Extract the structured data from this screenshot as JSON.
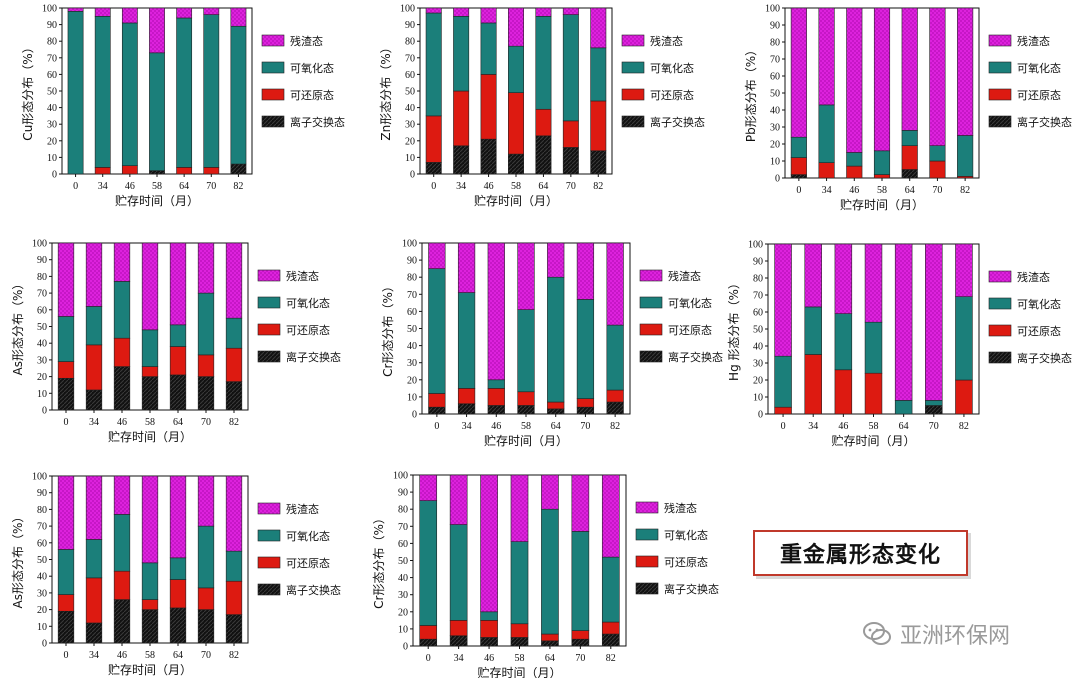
{
  "page": {
    "title": "重金属形态变化",
    "watermark": "亚洲环保网"
  },
  "chart_data": [
    {
      "type": "bar",
      "stacked": true,
      "ylabel": "Cu形态分布（%）",
      "xlabel": "贮存时间（月）",
      "categories": [
        "0",
        "34",
        "46",
        "58",
        "64",
        "70",
        "82"
      ],
      "ylim": [
        0,
        100
      ],
      "legend": "right",
      "series": [
        {
          "name": "离子交换态",
          "color": "#111111",
          "values": [
            0,
            0,
            0,
            2,
            0,
            0,
            6
          ]
        },
        {
          "name": "可还原态",
          "color": "#dd1a11",
          "values": [
            0,
            4,
            5,
            0,
            4,
            4,
            0
          ]
        },
        {
          "name": "可氧化态",
          "color": "#1b7f7a",
          "values": [
            98,
            91,
            86,
            71,
            90,
            92,
            83
          ]
        },
        {
          "name": "残渣态",
          "color": "#dd22dd",
          "values": [
            2,
            5,
            9,
            27,
            6,
            4,
            11
          ]
        }
      ]
    },
    {
      "type": "bar",
      "stacked": true,
      "ylabel": "Zn形态分布（%）",
      "xlabel": "贮存时间（月）",
      "categories": [
        "0",
        "34",
        "46",
        "58",
        "64",
        "70",
        "82"
      ],
      "ylim": [
        0,
        100
      ],
      "legend": "right",
      "series": [
        {
          "name": "离子交换态",
          "color": "#111111",
          "values": [
            7,
            17,
            21,
            12,
            23,
            16,
            14
          ]
        },
        {
          "name": "可还原态",
          "color": "#dd1a11",
          "values": [
            28,
            33,
            39,
            37,
            16,
            16,
            30
          ]
        },
        {
          "name": "可氧化态",
          "color": "#1b7f7a",
          "values": [
            62,
            45,
            31,
            28,
            56,
            64,
            32
          ]
        },
        {
          "name": "残渣态",
          "color": "#dd22dd",
          "values": [
            3,
            5,
            9,
            23,
            5,
            4,
            24
          ]
        }
      ]
    },
    {
      "type": "bar",
      "stacked": true,
      "ylabel": "Pb形态分布（%）",
      "xlabel": "贮存时间（月）",
      "categories": [
        "0",
        "34",
        "46",
        "58",
        "64",
        "70",
        "82"
      ],
      "ylim": [
        0,
        100
      ],
      "legend": "right",
      "series": [
        {
          "name": "离子交换态",
          "color": "#111111",
          "values": [
            2,
            0,
            0,
            0,
            5,
            0,
            0
          ]
        },
        {
          "name": "可还原态",
          "color": "#dd1a11",
          "values": [
            10,
            9,
            7,
            2,
            14,
            10,
            1
          ]
        },
        {
          "name": "可氧化态",
          "color": "#1b7f7a",
          "values": [
            12,
            34,
            8,
            14,
            9,
            9,
            24
          ]
        },
        {
          "name": "残渣态",
          "color": "#dd22dd",
          "values": [
            76,
            57,
            85,
            84,
            72,
            81,
            75
          ]
        }
      ]
    },
    {
      "type": "bar",
      "stacked": true,
      "ylabel": "As形态分布（%）",
      "xlabel": "贮存时间（月）",
      "categories": [
        "0",
        "34",
        "46",
        "58",
        "64",
        "70",
        "82"
      ],
      "ylim": [
        0,
        100
      ],
      "legend": "right",
      "series": [
        {
          "name": "离子交换态",
          "color": "#111111",
          "values": [
            19,
            12,
            26,
            20,
            21,
            20,
            17
          ]
        },
        {
          "name": "可还原态",
          "color": "#dd1a11",
          "values": [
            10,
            27,
            17,
            6,
            17,
            13,
            20
          ]
        },
        {
          "name": "可氧化态",
          "color": "#1b7f7a",
          "values": [
            27,
            23,
            34,
            22,
            13,
            37,
            18
          ]
        },
        {
          "name": "残渣态",
          "color": "#dd22dd",
          "values": [
            44,
            38,
            23,
            52,
            49,
            30,
            45
          ]
        }
      ]
    },
    {
      "type": "bar",
      "stacked": true,
      "ylabel": "Cr形态分布（%）",
      "xlabel": "贮存时间（月）",
      "categories": [
        "0",
        "34",
        "46",
        "58",
        "64",
        "70",
        "82"
      ],
      "ylim": [
        0,
        100
      ],
      "legend": "right",
      "series": [
        {
          "name": "离子交换态",
          "color": "#111111",
          "values": [
            4,
            6,
            5,
            5,
            3,
            4,
            7
          ]
        },
        {
          "name": "可还原态",
          "color": "#dd1a11",
          "values": [
            8,
            9,
            10,
            8,
            4,
            5,
            7
          ]
        },
        {
          "name": "可氧化态",
          "color": "#1b7f7a",
          "values": [
            73,
            56,
            5,
            48,
            73,
            58,
            38
          ]
        },
        {
          "name": "残渣态",
          "color": "#dd22dd",
          "values": [
            15,
            29,
            80,
            39,
            20,
            33,
            48
          ]
        }
      ]
    },
    {
      "type": "bar",
      "stacked": true,
      "ylabel": "Hg 形态分布（%）",
      "xlabel": "贮存时间（月）",
      "categories": [
        "0",
        "34",
        "46",
        "58",
        "64",
        "70",
        "82"
      ],
      "ylim": [
        0,
        100
      ],
      "legend": "right",
      "series": [
        {
          "name": "离子交换态",
          "color": "#111111",
          "values": [
            0,
            0,
            0,
            0,
            0,
            5,
            0
          ]
        },
        {
          "name": "可还原态",
          "color": "#dd1a11",
          "values": [
            4,
            35,
            26,
            24,
            0,
            0,
            20
          ]
        },
        {
          "name": "可氧化态",
          "color": "#1b7f7a",
          "values": [
            30,
            28,
            33,
            30,
            8,
            3,
            49
          ]
        },
        {
          "name": "残渣态",
          "color": "#dd22dd",
          "values": [
            66,
            37,
            41,
            46,
            92,
            92,
            31
          ]
        }
      ]
    },
    {
      "type": "bar",
      "stacked": true,
      "ylabel": "As形态分布（%）",
      "xlabel": "贮存时间（月）",
      "categories": [
        "0",
        "34",
        "46",
        "58",
        "64",
        "70",
        "82"
      ],
      "ylim": [
        0,
        100
      ],
      "legend": "right",
      "series": [
        {
          "name": "离子交换态",
          "color": "#111111",
          "values": [
            19,
            12,
            26,
            20,
            21,
            20,
            17
          ]
        },
        {
          "name": "可还原态",
          "color": "#dd1a11",
          "values": [
            10,
            27,
            17,
            6,
            17,
            13,
            20
          ]
        },
        {
          "name": "可氧化态",
          "color": "#1b7f7a",
          "values": [
            27,
            23,
            34,
            22,
            13,
            37,
            18
          ]
        },
        {
          "name": "残渣态",
          "color": "#dd22dd",
          "values": [
            44,
            38,
            23,
            52,
            49,
            30,
            45
          ]
        }
      ]
    },
    {
      "type": "bar",
      "stacked": true,
      "ylabel": "Cr形态分布（%）",
      "xlabel": "贮存时间（月）",
      "categories": [
        "0",
        "34",
        "46",
        "58",
        "64",
        "70",
        "82"
      ],
      "ylim": [
        0,
        100
      ],
      "legend": "right",
      "series": [
        {
          "name": "离子交换态",
          "color": "#111111",
          "values": [
            4,
            6,
            5,
            5,
            3,
            4,
            7
          ]
        },
        {
          "name": "可还原态",
          "color": "#dd1a11",
          "values": [
            8,
            9,
            10,
            8,
            4,
            5,
            7
          ]
        },
        {
          "name": "可氧化态",
          "color": "#1b7f7a",
          "values": [
            73,
            56,
            5,
            48,
            73,
            58,
            38
          ]
        },
        {
          "name": "残渣态",
          "color": "#dd22dd",
          "values": [
            15,
            29,
            80,
            39,
            20,
            33,
            48
          ]
        }
      ]
    }
  ]
}
